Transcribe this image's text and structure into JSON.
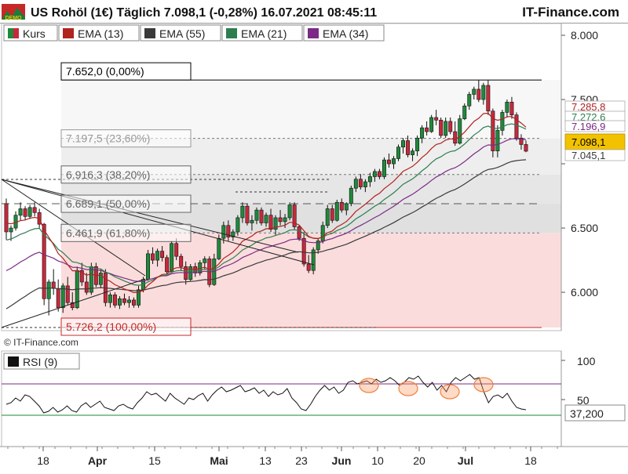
{
  "header": {
    "title": "US Rohöl (1€) Täglich 7.098,1 (-0,28%) 16.07.2021 08:45:11",
    "brand": "IT-Finance.com",
    "logo_text": "DEMO"
  },
  "watermark": "© IT-Finance.com",
  "legend": [
    {
      "label": "Kurs",
      "color": "#1e8a3a",
      "color2": "#c8283c"
    },
    {
      "label": "EMA (13)",
      "color": "#b0231f"
    },
    {
      "label": "EMA (55)",
      "color": "#3a3a3a"
    },
    {
      "label": "EMA (21)",
      "color": "#2e7d4f"
    },
    {
      "label": "EMA (34)",
      "color": "#7b2a86"
    }
  ],
  "chart_data": [
    {
      "type": "candlestick",
      "y_ticks": [
        "8.000",
        "7.500",
        "6.500",
        "6.000"
      ],
      "ylim": [
        5700,
        8050
      ],
      "x_ticks": [
        "18",
        "Apr",
        "15",
        "Mai",
        "13",
        "23",
        "Jun",
        "10",
        "20",
        "Jul",
        "18"
      ],
      "fibonacci": [
        {
          "label": "7.652,0 (0,00%)",
          "value": 7652.0
        },
        {
          "label": "7.197,5 (23,60%)",
          "value": 7197.5
        },
        {
          "label": "6.916,3 (38,20%)",
          "value": 6916.3
        },
        {
          "label": "6.689,1 (50,00%)",
          "value": 6689.1
        },
        {
          "label": "6.461,9 (61,80%)",
          "value": 6461.9
        },
        {
          "label": "5.726,2 (100,00%)",
          "value": 5726.2
        }
      ],
      "right_labels": [
        {
          "text": "7.285,8",
          "value": 7285.8,
          "color": "#b0231f"
        },
        {
          "text": "7.272,6",
          "value": 7272.6,
          "color": "#2e7d4f"
        },
        {
          "text": "7.196,9",
          "value": 7196.9,
          "color": "#7b2a86"
        },
        {
          "text": "7.098,1",
          "value": 7098.1,
          "color": "#f2c200"
        },
        {
          "text": "7.045,1",
          "value": 7045.1,
          "color": "#3a3a3a"
        }
      ],
      "candles": [
        [
          6690,
          6730,
          6410,
          6470
        ],
        [
          6470,
          6520,
          6400,
          6500
        ],
        [
          6500,
          6630,
          6480,
          6600
        ],
        [
          6600,
          6700,
          6560,
          6650
        ],
        [
          6650,
          6670,
          6560,
          6590
        ],
        [
          6590,
          6680,
          6570,
          6660
        ],
        [
          6660,
          6700,
          6590,
          6620
        ],
        [
          6620,
          6650,
          6500,
          6530
        ],
        [
          6530,
          6540,
          5900,
          5950
        ],
        [
          5950,
          6100,
          5820,
          6080
        ],
        [
          6080,
          6180,
          5980,
          6030
        ],
        [
          6030,
          6100,
          5850,
          5880
        ],
        [
          5880,
          6070,
          5840,
          6050
        ],
        [
          6050,
          6120,
          5900,
          5920
        ],
        [
          5920,
          6000,
          5860,
          5880
        ],
        [
          5880,
          6200,
          5870,
          6170
        ],
        [
          6170,
          6230,
          6050,
          6080
        ],
        [
          6080,
          6150,
          5980,
          6000
        ],
        [
          6000,
          6230,
          5980,
          6200
        ],
        [
          6200,
          6230,
          6040,
          6060
        ],
        [
          6060,
          6180,
          6030,
          6150
        ],
        [
          6150,
          6180,
          5890,
          5920
        ],
        [
          5920,
          6000,
          5880,
          5980
        ],
        [
          5980,
          6000,
          5880,
          5900
        ],
        [
          5900,
          5970,
          5870,
          5950
        ],
        [
          5950,
          5990,
          5900,
          5920
        ],
        [
          5920,
          5970,
          5880,
          5940
        ],
        [
          5940,
          5960,
          5880,
          5900
        ],
        [
          5900,
          6050,
          5880,
          6020
        ],
        [
          6020,
          6120,
          6000,
          6100
        ],
        [
          6100,
          6330,
          6090,
          6300
        ],
        [
          6300,
          6350,
          6220,
          6250
        ],
        [
          6250,
          6340,
          6200,
          6320
        ],
        [
          6320,
          6360,
          6240,
          6270
        ],
        [
          6270,
          6290,
          6140,
          6160
        ],
        [
          6160,
          6400,
          6150,
          6380
        ],
        [
          6380,
          6420,
          6250,
          6280
        ],
        [
          6280,
          6300,
          6170,
          6200
        ],
        [
          6200,
          6240,
          6060,
          6100
        ],
        [
          6100,
          6220,
          6090,
          6200
        ],
        [
          6200,
          6230,
          6120,
          6150
        ],
        [
          6150,
          6250,
          6130,
          6230
        ],
        [
          6230,
          6280,
          6180,
          6260
        ],
        [
          6260,
          6280,
          6040,
          6060
        ],
        [
          6060,
          6300,
          6050,
          6260
        ],
        [
          6260,
          6450,
          6250,
          6420
        ],
        [
          6420,
          6550,
          6380,
          6520
        ],
        [
          6520,
          6560,
          6400,
          6430
        ],
        [
          6430,
          6490,
          6400,
          6470
        ],
        [
          6470,
          6600,
          6440,
          6580
        ],
        [
          6580,
          6700,
          6540,
          6670
        ],
        [
          6670,
          6690,
          6520,
          6540
        ],
        [
          6540,
          6600,
          6480,
          6560
        ],
        [
          6560,
          6660,
          6530,
          6640
        ],
        [
          6640,
          6660,
          6520,
          6540
        ],
        [
          6540,
          6620,
          6510,
          6600
        ],
        [
          6600,
          6650,
          6470,
          6490
        ],
        [
          6490,
          6600,
          6440,
          6580
        ],
        [
          6580,
          6640,
          6520,
          6550
        ],
        [
          6550,
          6610,
          6500,
          6580
        ],
        [
          6580,
          6700,
          6560,
          6680
        ],
        [
          6680,
          6700,
          6490,
          6510
        ],
        [
          6510,
          6520,
          6400,
          6420
        ],
        [
          6420,
          6470,
          6200,
          6220
        ],
        [
          6220,
          6290,
          6150,
          6170
        ],
        [
          6170,
          6350,
          6140,
          6330
        ],
        [
          6330,
          6420,
          6300,
          6400
        ],
        [
          6400,
          6550,
          6380,
          6520
        ],
        [
          6520,
          6680,
          6500,
          6650
        ],
        [
          6650,
          6680,
          6540,
          6560
        ],
        [
          6560,
          6720,
          6550,
          6700
        ],
        [
          6700,
          6730,
          6620,
          6640
        ],
        [
          6640,
          6700,
          6600,
          6690
        ],
        [
          6690,
          6830,
          6670,
          6810
        ],
        [
          6810,
          6900,
          6780,
          6880
        ],
        [
          6880,
          6920,
          6800,
          6820
        ],
        [
          6820,
          6880,
          6780,
          6860
        ],
        [
          6860,
          6930,
          6820,
          6900
        ],
        [
          6900,
          6960,
          6860,
          6940
        ],
        [
          6940,
          6960,
          6880,
          6900
        ],
        [
          6900,
          7050,
          6880,
          7030
        ],
        [
          7030,
          7080,
          6970,
          7000
        ],
        [
          7000,
          7060,
          6960,
          7040
        ],
        [
          7040,
          7150,
          7020,
          7130
        ],
        [
          7130,
          7200,
          7080,
          7180
        ],
        [
          7180,
          7220,
          7050,
          7070
        ],
        [
          7070,
          7120,
          7020,
          7100
        ],
        [
          7100,
          7220,
          7060,
          7200
        ],
        [
          7200,
          7300,
          7160,
          7280
        ],
        [
          7280,
          7330,
          7220,
          7250
        ],
        [
          7250,
          7380,
          7240,
          7360
        ],
        [
          7360,
          7420,
          7300,
          7340
        ],
        [
          7340,
          7360,
          7200,
          7220
        ],
        [
          7220,
          7360,
          7200,
          7330
        ],
        [
          7330,
          7360,
          7230,
          7250
        ],
        [
          7250,
          7330,
          7140,
          7160
        ],
        [
          7160,
          7380,
          7150,
          7350
        ],
        [
          7350,
          7470,
          7340,
          7450
        ],
        [
          7450,
          7560,
          7420,
          7540
        ],
        [
          7540,
          7600,
          7500,
          7580
        ],
        [
          7580,
          7650,
          7480,
          7500
        ],
        [
          7500,
          7630,
          7460,
          7610
        ],
        [
          7610,
          7652,
          7380,
          7410
        ],
        [
          7410,
          7430,
          7050,
          7100
        ],
        [
          7100,
          7300,
          7050,
          7260
        ],
        [
          7260,
          7420,
          7220,
          7400
        ],
        [
          7400,
          7500,
          7360,
          7480
        ],
        [
          7480,
          7520,
          7350,
          7380
        ],
        [
          7380,
          7400,
          7180,
          7200
        ],
        [
          7200,
          7230,
          7110,
          7150
        ],
        [
          7150,
          7180,
          7090,
          7098
        ]
      ]
    },
    {
      "type": "line",
      "title": "RSI (9)",
      "y_ticks": [
        "100",
        "50"
      ],
      "ylim": [
        0,
        100
      ],
      "overbought": 70,
      "oversold": 30,
      "last_label": "37,200",
      "values": [
        44,
        46,
        52,
        48,
        56,
        54,
        48,
        42,
        33,
        35,
        40,
        34,
        37,
        42,
        36,
        34,
        42,
        46,
        40,
        44,
        48,
        40,
        38,
        36,
        42,
        44,
        40,
        38,
        46,
        52,
        60,
        56,
        58,
        53,
        48,
        58,
        52,
        48,
        44,
        52,
        50,
        55,
        58,
        48,
        56,
        62,
        66,
        60,
        62,
        65,
        68,
        60,
        62,
        65,
        58,
        62,
        54,
        60,
        56,
        58,
        64,
        52,
        46,
        38,
        36,
        44,
        54,
        62,
        68,
        62,
        66,
        58,
        62,
        72,
        74,
        70,
        72,
        74,
        70,
        76,
        72,
        74,
        78,
        74,
        68,
        72,
        78,
        76,
        80,
        72,
        66,
        72,
        62,
        68,
        60,
        72,
        78,
        74,
        78,
        82,
        76,
        78,
        60,
        46,
        54,
        56,
        52,
        58,
        48,
        40,
        38,
        37
      ]
    }
  ]
}
